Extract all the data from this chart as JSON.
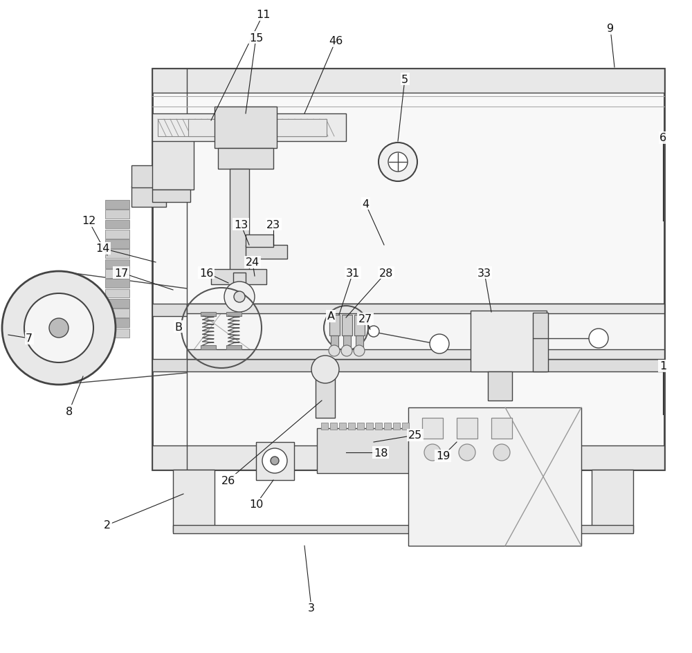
{
  "bg_color": "#ffffff",
  "lc": "#444444",
  "lc_thin": "#666666",
  "fc_light": "#f0f0f0",
  "fc_mid": "#e0e0e0",
  "fc_dark": "#cccccc",
  "fc_rack": "#c0c0c0"
}
